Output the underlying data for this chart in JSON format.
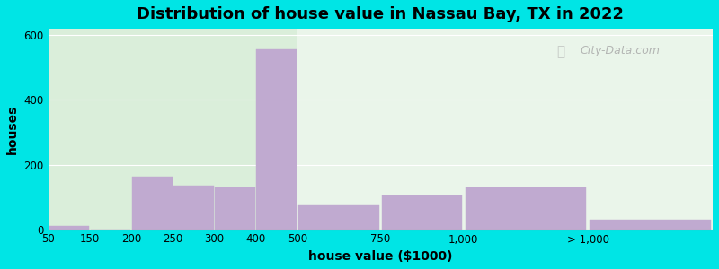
{
  "title": "Distribution of house value in Nassau Bay, TX in 2022",
  "xlabel": "house value ($1000)",
  "ylabel": "houses",
  "bar_color": "#c0aad0",
  "background_outer": "#00e5e5",
  "background_inner_left": "#daeeda",
  "background_inner_right": "#eaf5ea",
  "bar_values": [
    10,
    0,
    163,
    135,
    130,
    555,
    73,
    103,
    130,
    30
  ],
  "ylim": [
    0,
    620
  ],
  "yticks": [
    0,
    200,
    400,
    600
  ],
  "tick_labels": [
    "50",
    "150",
    "200",
    "250",
    "300",
    "400",
    "500",
    "750",
    "1,000",
    "> 1,000"
  ],
  "tick_positions": [
    0,
    1,
    2,
    3,
    4,
    5,
    6,
    8,
    10,
    13
  ],
  "bar_right_ends": [
    1,
    2,
    3,
    4,
    5,
    6,
    8,
    10,
    13,
    16
  ],
  "xlim_right": 16,
  "watermark": "City-Data.com",
  "gradient_split": 6
}
